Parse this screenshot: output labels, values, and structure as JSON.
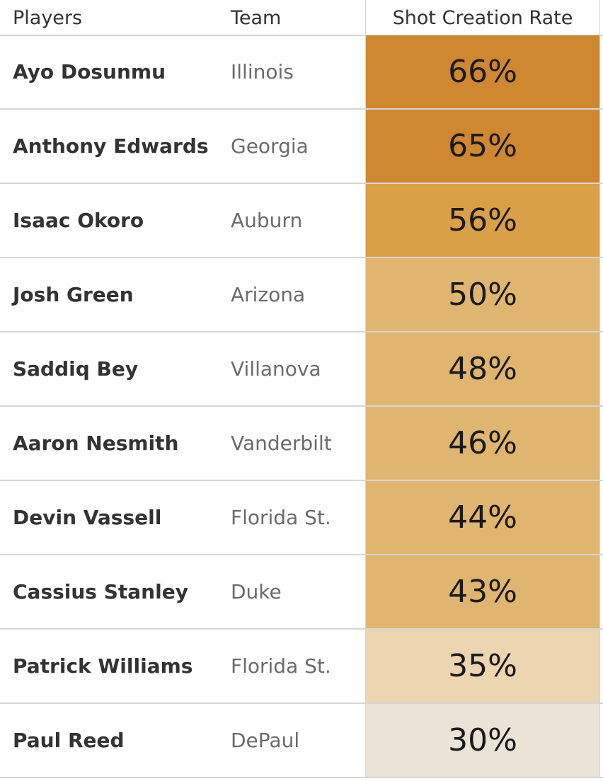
{
  "header": {
    "players": "Players",
    "team": "Team",
    "rate": "Shot Creation Rate"
  },
  "rows": [
    {
      "player": "Ayo Dosunmu",
      "team": "Illinois",
      "rate_label": "66%"
    },
    {
      "player": "Anthony Edwards",
      "team": "Georgia",
      "rate_label": "65%"
    },
    {
      "player": "Isaac Okoro",
      "team": "Auburn",
      "rate_label": "56%"
    },
    {
      "player": "Josh Green",
      "team": "Arizona",
      "rate_label": "50%"
    },
    {
      "player": "Saddiq Bey",
      "team": "Villanova",
      "rate_label": "48%"
    },
    {
      "player": "Aaron Nesmith",
      "team": "Vanderbilt",
      "rate_label": "46%"
    },
    {
      "player": "Devin Vassell",
      "team": "Florida St.",
      "rate_label": "44%"
    },
    {
      "player": "Cassius Stanley",
      "team": "Duke",
      "rate_label": "43%"
    },
    {
      "player": "Patrick Williams",
      "team": "Florida St.",
      "rate_label": "35%"
    },
    {
      "player": "Paul Reed",
      "team": "DePaul",
      "rate_label": "30%"
    }
  ],
  "chart_data": {
    "type": "heatmap",
    "columns": [
      "Players",
      "Team",
      "Shot Creation Rate"
    ],
    "categories": [
      "Ayo Dosunmu",
      "Anthony Edwards",
      "Isaac Okoro",
      "Josh Green",
      "Saddiq Bey",
      "Aaron Nesmith",
      "Devin Vassell",
      "Cassius Stanley",
      "Patrick Williams",
      "Paul Reed"
    ],
    "teams": [
      "Illinois",
      "Georgia",
      "Auburn",
      "Arizona",
      "Villanova",
      "Vanderbilt",
      "Florida St.",
      "Duke",
      "Florida St.",
      "DePaul"
    ],
    "values": [
      66,
      65,
      56,
      50,
      48,
      46,
      44,
      43,
      35,
      30
    ],
    "value_unit": "%",
    "color_scale": {
      "low_color": "#ebe3d5",
      "high_color": "#cf8730",
      "steps": [
        {
          "min": 60,
          "color": "#cf8730"
        },
        {
          "min": 55,
          "color": "#d9a048"
        },
        {
          "min": 42,
          "color": "#e0b570"
        },
        {
          "min": 33,
          "color": "#ecd5b1"
        },
        {
          "min": 0,
          "color": "#ebe3d5"
        }
      ]
    }
  }
}
